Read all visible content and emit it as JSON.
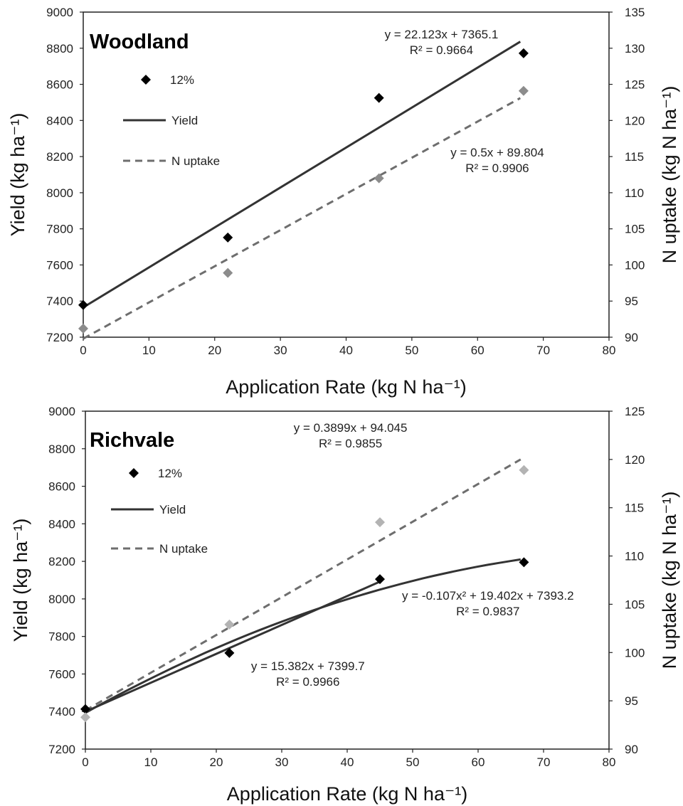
{
  "chart_data": [
    {
      "type": "scatter",
      "title": "Woodland",
      "xlabel": "Application Rate (kg N ha⁻¹)",
      "ylabel": "Yield (kg ha⁻¹)",
      "y2label": "N uptake (kg N ha⁻¹)",
      "xlim": [
        0,
        80
      ],
      "ylim": [
        7200,
        9000
      ],
      "y2lim": [
        90,
        135
      ],
      "xticks": [
        "0",
        "10",
        "20",
        "30",
        "40",
        "50",
        "60",
        "70",
        "80"
      ],
      "yticks": [
        "7200",
        "7400",
        "7600",
        "7800",
        "8000",
        "8200",
        "8400",
        "8600",
        "8800",
        "9000"
      ],
      "y2ticks": [
        "90",
        "95",
        "100",
        "105",
        "110",
        "115",
        "120",
        "125",
        "130",
        "135"
      ],
      "grid": false,
      "legend": {
        "position": "top-left",
        "entries": [
          {
            "label": "12%",
            "kind": "marker",
            "color": "#000000"
          },
          {
            "label": "Yield",
            "kind": "solid",
            "color": "#333333"
          },
          {
            "label": "N uptake",
            "kind": "dashed",
            "color": "#6e6e6e"
          }
        ]
      },
      "series": [
        {
          "axis": "left",
          "color": "#000000",
          "x": [
            0,
            22,
            45,
            67
          ],
          "y": [
            7378,
            7752,
            8525,
            8772
          ]
        },
        {
          "axis": "right",
          "color": "#8c8c8c",
          "x": [
            0,
            22,
            45,
            67
          ],
          "y": [
            91.2,
            98.9,
            112.0,
            124.1
          ]
        }
      ],
      "trendlines": [
        {
          "axis": "left",
          "style": "solid",
          "color": "#333333",
          "x": [
            0,
            66.5
          ],
          "y": [
            7365.1,
            8836.3
          ]
        },
        {
          "axis": "right",
          "style": "dashed",
          "color": "#6e6e6e",
          "x": [
            0,
            66.5
          ],
          "y": [
            89.8,
            123.1
          ]
        }
      ],
      "annotations": [
        {
          "line1": "y = 22.123x + 7365.1",
          "line2": "R² = 0.9664",
          "at_x": 54.5,
          "at_y": 8855,
          "axis": "left"
        },
        {
          "line1": "y = 0.5x + 89.804",
          "line2": "R² = 0.9906",
          "at_x": 63,
          "at_y": 8200,
          "axis": "left"
        }
      ]
    },
    {
      "type": "scatter",
      "title": "Richvale",
      "xlabel": "Application Rate (kg N ha⁻¹)",
      "ylabel": "Yield (kg ha⁻¹)",
      "y2label": "N uptake (kg N ha⁻¹)",
      "xlim": [
        0,
        80
      ],
      "ylim": [
        7200,
        9000
      ],
      "y2lim": [
        90,
        125
      ],
      "xticks": [
        "0",
        "10",
        "20",
        "30",
        "40",
        "50",
        "60",
        "70",
        "80"
      ],
      "yticks": [
        "7200",
        "7400",
        "7600",
        "7800",
        "8000",
        "8200",
        "8400",
        "8600",
        "8800",
        "9000"
      ],
      "y2ticks": [
        "90",
        "95",
        "100",
        "105",
        "110",
        "115",
        "120",
        "125"
      ],
      "grid": false,
      "legend": {
        "position": "top-left",
        "entries": [
          {
            "label": "12%",
            "kind": "marker",
            "color": "#000000"
          },
          {
            "label": "Yield",
            "kind": "solid",
            "color": "#333333"
          },
          {
            "label": "N uptake",
            "kind": "dashed",
            "color": "#6e6e6e"
          }
        ]
      },
      "series": [
        {
          "axis": "left",
          "color": "#000000",
          "x": [
            0,
            22,
            45,
            67
          ],
          "y": [
            7413,
            7712,
            8105,
            8195
          ]
        },
        {
          "axis": "right",
          "color": "#b3b3b3",
          "x": [
            0,
            22,
            45,
            67
          ],
          "y": [
            93.3,
            102.9,
            113.5,
            118.9
          ]
        }
      ],
      "trendlines": [
        {
          "axis": "right",
          "style": "dashed",
          "color": "#6e6e6e",
          "x": [
            0,
            66.5
          ],
          "y": [
            94.0,
            120.0
          ]
        },
        {
          "axis": "left",
          "style": "solid",
          "color": "#333333",
          "x": [
            0,
            45
          ],
          "y": [
            7399.7,
            8091.9
          ]
        },
        {
          "axis": "left",
          "style": "solid",
          "color": "#333333",
          "kind": "poly2",
          "coeffs": [
            -0.107,
            19.402,
            7393.2
          ],
          "x": [
            0,
            66.5
          ]
        }
      ],
      "annotations": [
        {
          "line1": "y = 0.3899x + 94.045",
          "line2": "R² = 0.9855",
          "at_x": 40.5,
          "at_y": 8890,
          "axis": "left"
        },
        {
          "line1": "y = -0.107x² + 19.402x + 7393.2",
          "line2": "R² = 0.9837",
          "at_x": 61.5,
          "at_y": 7995,
          "axis": "left"
        },
        {
          "line1": "y = 15.382x + 7399.7",
          "line2": "R² = 0.9966",
          "at_x": 34,
          "at_y": 7620,
          "axis": "left"
        }
      ]
    }
  ]
}
